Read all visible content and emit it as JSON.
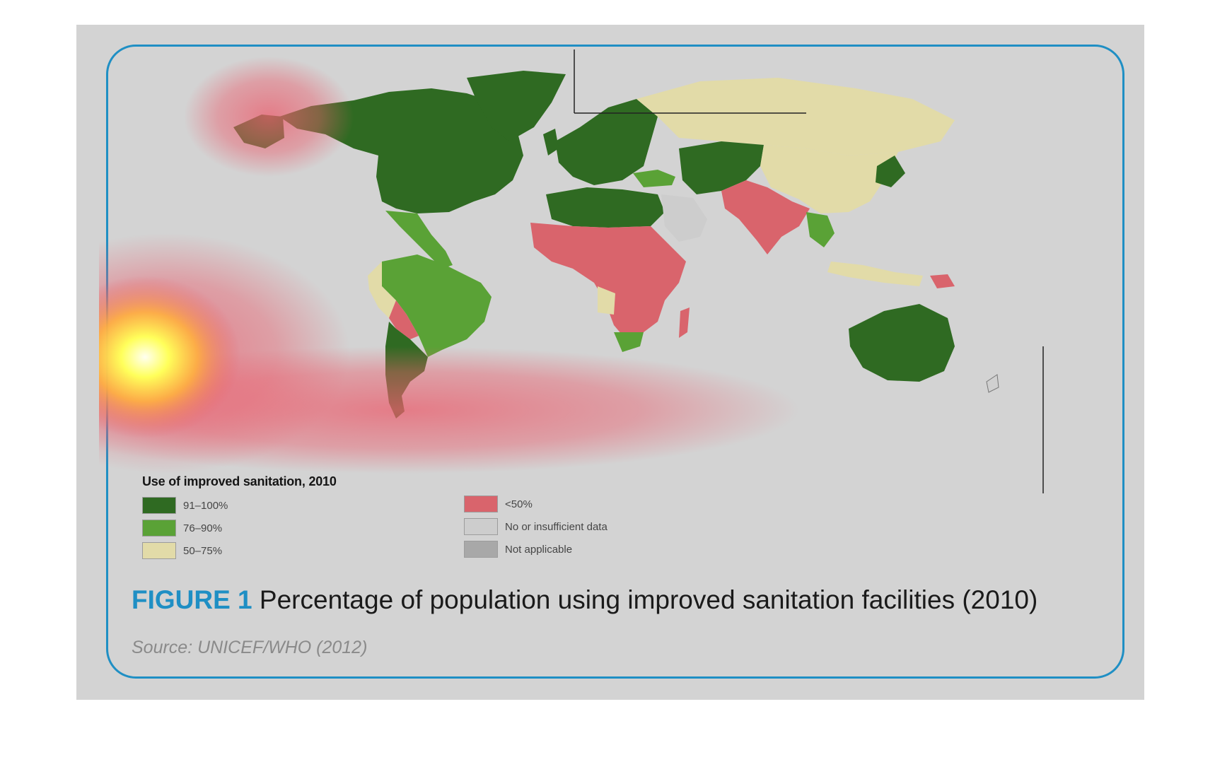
{
  "figure": {
    "number": "FIGURE 1",
    "title": "Percentage of population using improved sanitation facilities (2010)",
    "source": "Source: UNICEF/WHO (2012)"
  },
  "legend": {
    "title": "Use of improved sanitation, 2010",
    "items": [
      {
        "label": "91–100%",
        "color": "#2f6a22"
      },
      {
        "label": "76–90%",
        "color": "#5aa236"
      },
      {
        "label": "50–75%",
        "color": "#e2dba8"
      },
      {
        "label": "<50%",
        "color": "#d9646c"
      },
      {
        "label": "No or insufficient data",
        "color": "#cdcdcd"
      },
      {
        "label": "Not applicable",
        "color": "#a8a8a8"
      }
    ]
  },
  "colors": {
    "accent": "#1f8fc4",
    "panel_background": "#d3d3d3",
    "heat_core": "#ffff7a",
    "heat_glow": "#e85a6a"
  },
  "regions": [
    {
      "name": "North America",
      "category": "91–100%"
    },
    {
      "name": "Greenland",
      "category": "91–100%"
    },
    {
      "name": "Mexico and Central America",
      "category": "76–90%"
    },
    {
      "name": "Brazil",
      "category": "76–90%"
    },
    {
      "name": "Bolivia",
      "category": "<50%"
    },
    {
      "name": "Peru",
      "category": "50–75%"
    },
    {
      "name": "Argentina",
      "category": "91–100%"
    },
    {
      "name": "Europe",
      "category": "91–100%"
    },
    {
      "name": "Russia",
      "category": "50–75%"
    },
    {
      "name": "North Africa",
      "category": "91–100%"
    },
    {
      "name": "Sub-Saharan Africa",
      "category": "<50%"
    },
    {
      "name": "Angola",
      "category": "50–75%"
    },
    {
      "name": "South Africa",
      "category": "76–90%"
    },
    {
      "name": "Madagascar",
      "category": "<50%"
    },
    {
      "name": "Arabian Peninsula",
      "category": "No or insufficient data"
    },
    {
      "name": "Turkey",
      "category": "76–90%"
    },
    {
      "name": "Central Asia",
      "category": "91–100%"
    },
    {
      "name": "South Asia",
      "category": "<50%"
    },
    {
      "name": "China and Mongolia",
      "category": "50–75%"
    },
    {
      "name": "Japan and Korea",
      "category": "91–100%"
    },
    {
      "name": "Southeast Asia",
      "category": "50–75%"
    },
    {
      "name": "Australia",
      "category": "91–100%"
    },
    {
      "name": "Papua New Guinea",
      "category": "<50%"
    }
  ]
}
